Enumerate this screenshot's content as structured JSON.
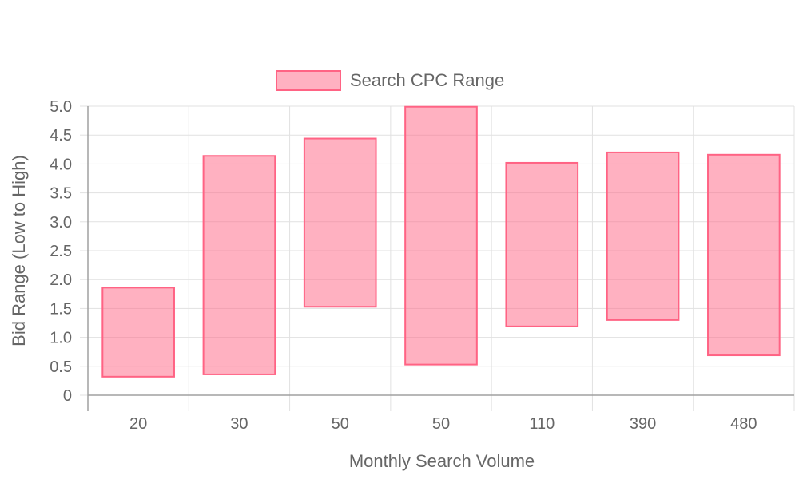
{
  "colors": {
    "bar_fill": "rgba(255, 99, 132, 0.5)",
    "bar_stroke": "#ff6384",
    "grid": "#e1e1e1",
    "axis": "#a0a0a0",
    "text": "#666666"
  },
  "chart_data": {
    "type": "bar",
    "floating": true,
    "categories": [
      "20",
      "30",
      "50",
      "50",
      "110",
      "390",
      "480"
    ],
    "series": [
      {
        "name": "Search CPC Range",
        "low": [
          0.32,
          0.36,
          1.53,
          0.53,
          1.19,
          1.3,
          0.69
        ],
        "high": [
          1.86,
          4.14,
          4.44,
          4.99,
          4.02,
          4.2,
          4.16
        ]
      }
    ],
    "xlabel": "Monthly Search Volume",
    "ylabel": "Bid Range (Low to High)",
    "ylim": [
      0,
      5
    ],
    "yticks": [
      "0",
      "0.5",
      "1.0",
      "1.5",
      "2.0",
      "2.5",
      "3.0",
      "3.5",
      "4.0",
      "4.5",
      "5.0"
    ],
    "grid": true,
    "legend_position": "top"
  }
}
